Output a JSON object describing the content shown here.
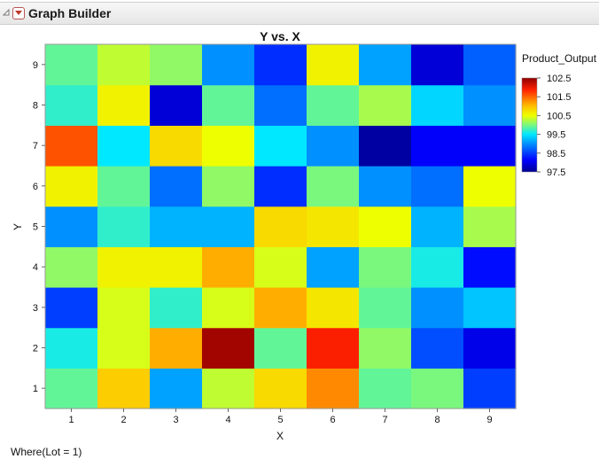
{
  "window": {
    "title": "Graph Builder"
  },
  "footer": {
    "where": "Where(Lot = 1)"
  },
  "chart_data": {
    "type": "heatmap",
    "title": "Y vs. X",
    "xlabel": "X",
    "ylabel": "Y",
    "x": [
      1,
      2,
      3,
      4,
      5,
      6,
      7,
      8,
      9
    ],
    "y": [
      1,
      2,
      3,
      4,
      5,
      6,
      7,
      8,
      9
    ],
    "values": [
      [
        99.9,
        100.9,
        99.1,
        100.3,
        100.8,
        101.3,
        99.9,
        100.0,
        98.5
      ],
      [
        99.6,
        100.4,
        101.1,
        102.4,
        99.9,
        101.9,
        100.1,
        98.6,
        98.0
      ],
      [
        98.5,
        100.4,
        99.7,
        100.4,
        101.1,
        100.7,
        99.9,
        99.0,
        99.3
      ],
      [
        100.1,
        100.6,
        100.6,
        101.1,
        100.4,
        99.1,
        100.0,
        99.6,
        98.2
      ],
      [
        99.0,
        99.7,
        99.2,
        99.2,
        100.8,
        100.7,
        100.5,
        99.2,
        100.2
      ],
      [
        100.6,
        99.9,
        98.8,
        100.1,
        98.4,
        100.0,
        99.0,
        98.8,
        100.5
      ],
      [
        101.6,
        99.5,
        100.8,
        100.5,
        99.5,
        99.0,
        97.6,
        98.1,
        98.1
      ],
      [
        99.7,
        100.6,
        97.9,
        99.9,
        98.8,
        99.9,
        100.2,
        99.4,
        99.0
      ],
      [
        99.9,
        100.3,
        100.1,
        99.0,
        98.4,
        100.6,
        99.1,
        97.9,
        98.7
      ]
    ],
    "colorscale": {
      "title": "Product_Output",
      "min": 97.5,
      "max": 102.5,
      "ticks": [
        "102.5",
        "101.5",
        "100.5",
        "99.5",
        "98.5",
        "97.5"
      ]
    },
    "grid": false
  }
}
